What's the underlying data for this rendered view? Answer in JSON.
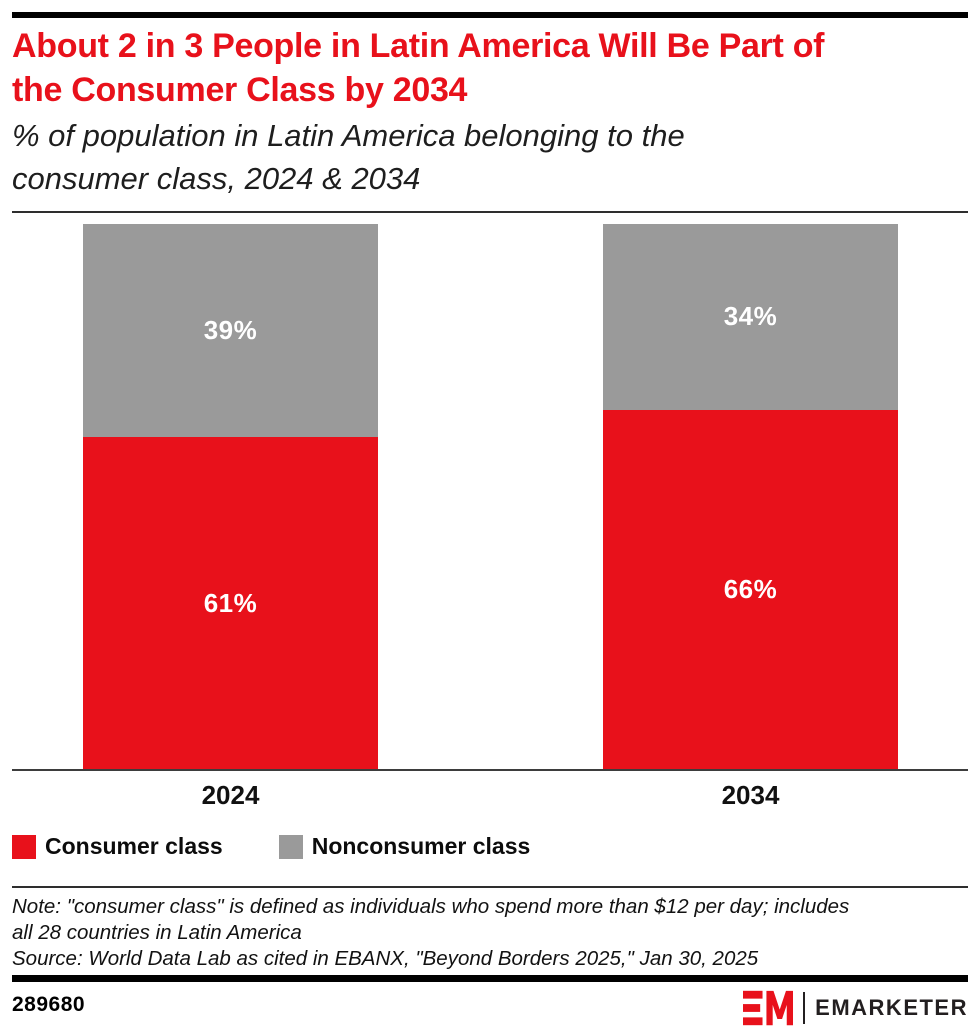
{
  "header": {
    "title_lines": [
      "About 2 in 3 People in Latin America Will Be Part of",
      "the Consumer Class by 2034"
    ],
    "subtitle_lines": [
      "% of population in Latin America belonging to the",
      "consumer class, 2024 & 2034"
    ]
  },
  "chart_data": {
    "type": "bar",
    "stacked": true,
    "title": "About 2 in 3 People in Latin America Will Be Part of the Consumer Class by 2034",
    "subtitle": "% of population in Latin America belonging to the consumer class, 2024 & 2034",
    "categories": [
      "2024",
      "2034"
    ],
    "series": [
      {
        "name": "Consumer class",
        "color": "#E8111B",
        "values": [
          61,
          66
        ]
      },
      {
        "name": "Nonconsumer class",
        "color": "#9A9A9A",
        "values": [
          39,
          34
        ]
      }
    ],
    "label_suffix": "%",
    "ylim": [
      0,
      100
    ],
    "grid": false,
    "legend_position": "bottom-left"
  },
  "legend": {
    "items": [
      {
        "label": "Consumer class",
        "color": "#E8111B"
      },
      {
        "label": "Nonconsumer class",
        "color": "#9A9A9A"
      }
    ]
  },
  "notes": {
    "note_lines": [
      "Note: \"consumer class\" is defined as individuals who spend more than $12 per day; includes",
      "all 28 countries in Latin America"
    ],
    "source": "Source: World Data Lab as cited in EBANX, \"Beyond Borders 2025,\" Jan 30, 2025"
  },
  "footer": {
    "chart_id": "289680",
    "brand": "EMARKETER"
  },
  "colors": {
    "brand_red": "#E8111B",
    "gray": "#9A9A9A",
    "black": "#000000"
  }
}
